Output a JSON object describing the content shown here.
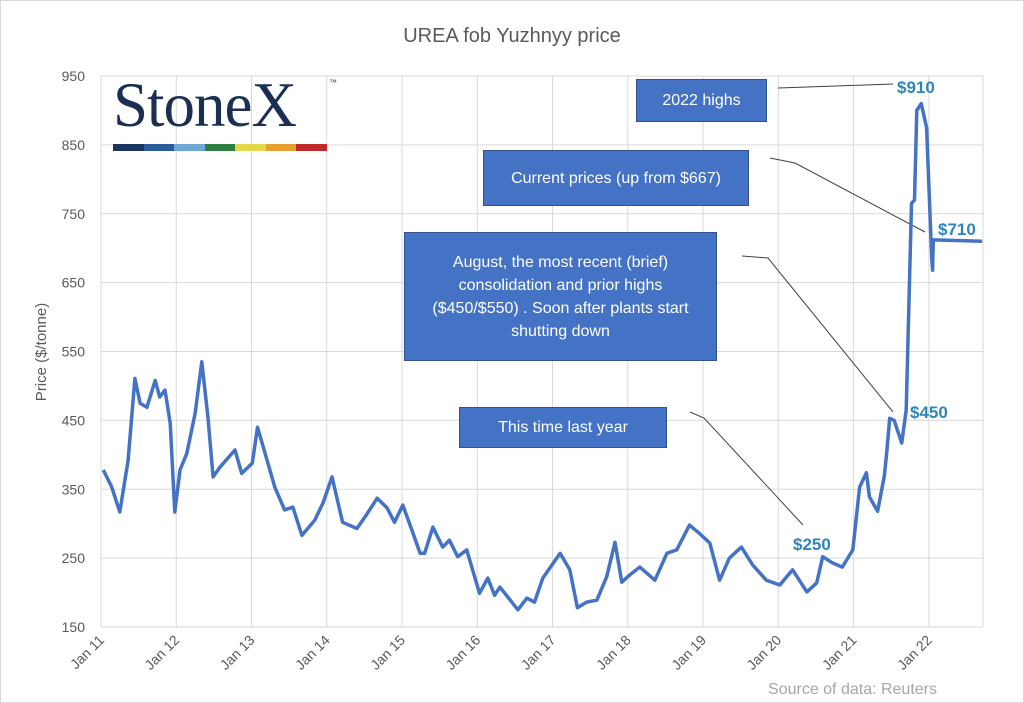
{
  "chart_data": {
    "type": "line",
    "title": "UREA fob Yuzhnyy price",
    "xlabel": "",
    "ylabel": "Price ($/tonne)",
    "ylim": [
      150,
      950
    ],
    "xlim": [
      2011,
      2022.72
    ],
    "yticks": [
      150,
      250,
      350,
      450,
      550,
      650,
      750,
      850,
      950
    ],
    "xticks": [
      {
        "label": "Jan 11",
        "x": 2011
      },
      {
        "label": "Jan 12",
        "x": 2012
      },
      {
        "label": "Jan 13",
        "x": 2013
      },
      {
        "label": "Jan 14",
        "x": 2014
      },
      {
        "label": "Jan 15",
        "x": 2015
      },
      {
        "label": "Jan 16",
        "x": 2016
      },
      {
        "label": "Jan 17",
        "x": 2017
      },
      {
        "label": "Jan 18",
        "x": 2018
      },
      {
        "label": "Jan 19",
        "x": 2019
      },
      {
        "label": "Jan 20",
        "x": 2020
      },
      {
        "label": "Jan 21",
        "x": 2021
      },
      {
        "label": "Jan 22",
        "x": 2022
      }
    ],
    "grid": true,
    "series": [
      {
        "name": "UREA fob Yuzhnyy",
        "color": "#4472c4",
        "x": [
          2011.03,
          2011.14,
          2011.25,
          2011.36,
          2011.45,
          2011.52,
          2011.61,
          2011.72,
          2011.78,
          2011.85,
          2011.92,
          2011.98,
          2012.05,
          2012.14,
          2012.25,
          2012.34,
          2012.42,
          2012.49,
          2012.58,
          2012.78,
          2012.87,
          2013.01,
          2013.08,
          2013.18,
          2013.31,
          2013.44,
          2013.55,
          2013.67,
          2013.84,
          2013.95,
          2014.07,
          2014.21,
          2014.4,
          2014.51,
          2014.67,
          2014.8,
          2014.9,
          2015.01,
          2015.13,
          2015.24,
          2015.3,
          2015.41,
          2015.54,
          2015.63,
          2015.74,
          2015.86,
          2016.03,
          2016.14,
          2016.23,
          2016.3,
          2016.54,
          2016.66,
          2016.76,
          2016.87,
          2017.1,
          2017.23,
          2017.33,
          2017.45,
          2017.59,
          2017.72,
          2017.83,
          2017.92,
          2018.03,
          2018.16,
          2018.36,
          2018.52,
          2018.65,
          2018.82,
          2018.95,
          2019.09,
          2019.22,
          2019.35,
          2019.51,
          2019.66,
          2019.84,
          2020.02,
          2020.19,
          2020.38,
          2020.51,
          2020.59,
          2020.72,
          2020.85,
          2020.99,
          2021.08,
          2021.17,
          2021.21,
          2021.32,
          2021.41,
          2021.44,
          2021.48,
          2021.54,
          2021.64,
          2021.7,
          2021.77,
          2021.81,
          2021.84,
          2021.9,
          2021.97,
          2022.04,
          2022.05,
          2022.06,
          2022.71
        ],
        "y": [
          378,
          354,
          317,
          392,
          511,
          475,
          469,
          508,
          484,
          494,
          446,
          317,
          378,
          402,
          460,
          535,
          455,
          368,
          382,
          407,
          373,
          388,
          440,
          402,
          353,
          320,
          324,
          283,
          305,
          330,
          368,
          302,
          293,
          310,
          337,
          323,
          302,
          327,
          291,
          257,
          257,
          295,
          266,
          276,
          252,
          262,
          199,
          221,
          196,
          208,
          175,
          192,
          186,
          221,
          257,
          233,
          178,
          186,
          189,
          223,
          273,
          215,
          226,
          237,
          218,
          257,
          262,
          298,
          286,
          272,
          218,
          250,
          266,
          240,
          218,
          211,
          233,
          201,
          214,
          252,
          243,
          237,
          262,
          353,
          374,
          339,
          318,
          370,
          403,
          453,
          450,
          417,
          465,
          765,
          770,
          900,
          910,
          875,
          683,
          668,
          712,
          710
        ]
      }
    ],
    "annotations": [
      {
        "text": "2022 highs",
        "label": "$910"
      },
      {
        "text": "Current prices (up from $667)",
        "label": "$710"
      },
      {
        "text": "August, the most recent (brief) consolidation and prior highs ($450/$550) . Soon after plants start shutting down",
        "label": "$450"
      },
      {
        "text": "This time last year",
        "label": "$250"
      }
    ],
    "source": "Source of data: Reuters"
  },
  "logo": {
    "text": "StoneX",
    "tm": "™",
    "stripe_colors": [
      "#1b3660",
      "#2a5c9a",
      "#6fa8d6",
      "#2e8040",
      "#e2d84a",
      "#e8a030",
      "#c02a2a"
    ]
  }
}
